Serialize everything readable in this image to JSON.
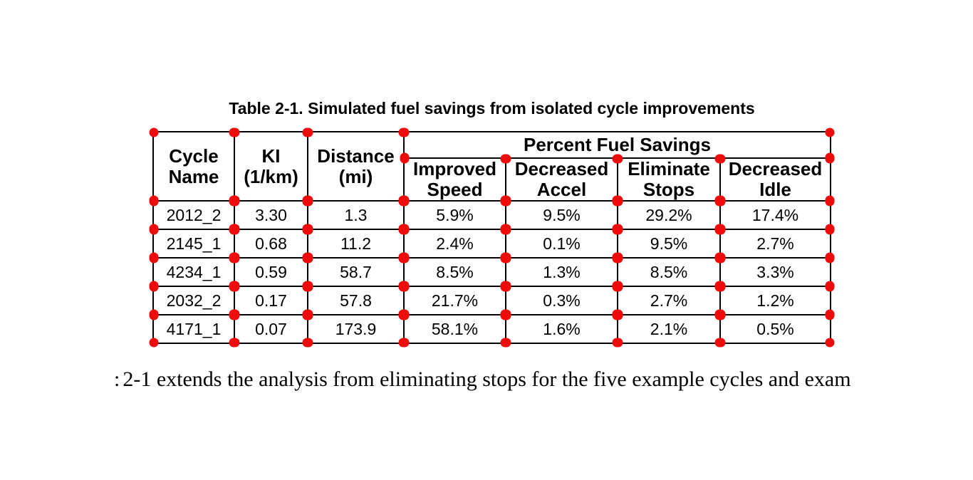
{
  "chart_data": {
    "type": "table",
    "title": "Table 2-1. Simulated fuel savings from isolated cycle improvements",
    "column_group_header": "Percent Fuel Savings",
    "columns": [
      "Cycle Name",
      "KI (1/km)",
      "Distance (mi)",
      "Improved Speed",
      "Decreased Accel",
      "Eliminate Stops",
      "Decreased Idle"
    ],
    "rows": [
      [
        "2012_2",
        "3.30",
        "1.3",
        "5.9%",
        "9.5%",
        "29.2%",
        "17.4%"
      ],
      [
        "2145_1",
        "0.68",
        "11.2",
        "2.4%",
        "0.1%",
        "9.5%",
        "2.7%"
      ],
      [
        "4234_1",
        "0.59",
        "58.7",
        "8.5%",
        "1.3%",
        "8.5%",
        "3.3%"
      ],
      [
        "2032_2",
        "0.17",
        "57.8",
        "21.7%",
        "0.3%",
        "2.7%",
        "1.2%"
      ],
      [
        "4171_1",
        "0.07",
        "173.9",
        "58.1%",
        "1.6%",
        "2.1%",
        "0.5%"
      ]
    ]
  },
  "header_display": {
    "cycle_name": [
      "Cycle",
      "Name"
    ],
    "ki": [
      "KI",
      "(1/km)"
    ],
    "distance": [
      "Distance",
      "(mi)"
    ],
    "improved_speed": [
      "Improved",
      "Speed"
    ],
    "decreased_accel": [
      "Decreased",
      "Accel"
    ],
    "eliminate_stops": [
      "Eliminate",
      "Stops"
    ],
    "decreased_idle": [
      "Decreased",
      "Idle"
    ]
  },
  "body_text": {
    "partial_glyph": ":",
    "sentence": "2-1 extends the analysis from eliminating stops for the five example cycles and exam"
  },
  "annotations": {
    "marker_name": "red-dot-marker",
    "marker_color": "#ee0b0b"
  },
  "colors": {
    "border": "#000000",
    "text": "#000000",
    "background": "#ffffff"
  }
}
